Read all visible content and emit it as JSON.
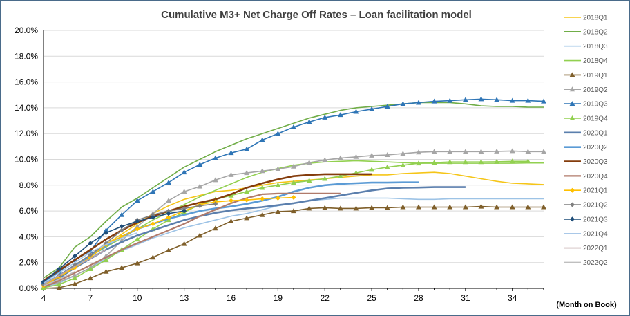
{
  "chart_data": {
    "type": "line",
    "title": "Cumulative M3+ Net Charge Off Rates – Loan facilitation model",
    "xlabel": "(Month on Book)",
    "ylabel": "",
    "xlim": [
      4,
      36
    ],
    "ylim": [
      0,
      20
    ],
    "x_ticks": [
      4,
      7,
      10,
      13,
      16,
      19,
      22,
      25,
      28,
      31,
      34
    ],
    "x_tick_labels": [
      "4",
      "7",
      "10",
      "13",
      "16",
      "19",
      "22",
      "25",
      "28",
      "31",
      "34"
    ],
    "y_ticks": [
      0,
      2,
      4,
      6,
      8,
      10,
      12,
      14,
      16,
      18,
      20
    ],
    "y_tick_labels": [
      "0.0%",
      "2.0%",
      "4.0%",
      "6.0%",
      "8.0%",
      "10.0%",
      "12.0%",
      "14.0%",
      "16.0%",
      "18.0%",
      "20.0%"
    ],
    "grid": true,
    "legend_position": "right",
    "series": [
      {
        "name": "2018Q1",
        "color": "#f5c518",
        "marker": "none",
        "x_start": 4,
        "values": [
          0.3,
          1.0,
          1.8,
          2.6,
          3.4,
          4.2,
          5.0,
          5.8,
          6.4,
          6.9,
          7.2,
          7.5,
          7.6,
          7.8,
          8.0,
          8.2,
          8.3,
          8.4,
          8.5,
          8.6,
          8.7,
          8.8,
          8.8,
          8.9,
          8.95,
          9.0,
          8.9,
          8.7,
          8.5,
          8.3,
          8.15,
          8.1,
          8.05
        ]
      },
      {
        "name": "2018Q2",
        "color": "#70ad47",
        "marker": "none",
        "x_start": 4,
        "values": [
          0.8,
          1.6,
          3.2,
          4.0,
          5.2,
          6.3,
          7.0,
          7.8,
          8.6,
          9.4,
          10.0,
          10.6,
          11.1,
          11.6,
          12.0,
          12.4,
          12.8,
          13.2,
          13.5,
          13.8,
          14.0,
          14.1,
          14.2,
          14.3,
          14.4,
          14.4,
          14.4,
          14.3,
          14.15,
          14.1,
          14.1,
          14.05,
          14.05
        ]
      },
      {
        "name": "2018Q3",
        "color": "#9dc3e6",
        "marker": "none",
        "x_start": 4,
        "values": [
          0.1,
          0.4,
          1.0,
          1.6,
          2.3,
          2.9,
          3.4,
          3.9,
          4.3,
          4.7,
          5.0,
          5.3,
          5.6,
          5.8,
          6.1,
          6.4,
          6.6,
          6.8,
          6.9,
          7.0,
          7.0,
          7.0,
          7.0,
          6.95,
          6.9,
          6.9,
          6.95,
          6.95,
          6.95,
          6.95,
          6.95,
          6.95,
          6.95
        ]
      },
      {
        "name": "2018Q4",
        "color": "#92d050",
        "marker": "none",
        "x_start": 4,
        "values": [
          0.3,
          0.9,
          1.8,
          2.5,
          3.2,
          3.9,
          4.6,
          5.3,
          5.9,
          6.5,
          7.1,
          7.6,
          8.1,
          8.6,
          9.0,
          9.3,
          9.55,
          9.7,
          9.8,
          9.85,
          9.9,
          9.85,
          9.8,
          9.75,
          9.7,
          9.7,
          9.7,
          9.7,
          9.7,
          9.7,
          9.7,
          9.72,
          9.72
        ]
      },
      {
        "name": "2019Q1",
        "color": "#7f5f2a",
        "marker": "triangle",
        "x_start": 4,
        "values": [
          0.0,
          0.05,
          0.35,
          0.8,
          1.3,
          1.6,
          1.95,
          2.4,
          2.95,
          3.45,
          4.1,
          4.65,
          5.2,
          5.45,
          5.7,
          5.95,
          6.0,
          6.2,
          6.25,
          6.2,
          6.2,
          6.25,
          6.25,
          6.3,
          6.3,
          6.3,
          6.3,
          6.3,
          6.35,
          6.3,
          6.3,
          6.3,
          6.3
        ]
      },
      {
        "name": "2019Q2",
        "color": "#a6a6a6",
        "marker": "triangle",
        "x_start": 4,
        "values": [
          0.1,
          0.5,
          1.0,
          1.6,
          2.5,
          3.7,
          4.8,
          5.8,
          6.8,
          7.5,
          7.9,
          8.4,
          8.8,
          8.95,
          9.1,
          9.25,
          9.45,
          9.75,
          9.95,
          10.1,
          10.2,
          10.3,
          10.35,
          10.45,
          10.55,
          10.6,
          10.6,
          10.6,
          10.6,
          10.62,
          10.65,
          10.6,
          10.6
        ]
      },
      {
        "name": "2019Q3",
        "color": "#2e75b6",
        "marker": "triangle",
        "x_start": 4,
        "values": [
          0.5,
          1.3,
          2.2,
          2.9,
          4.5,
          5.7,
          6.8,
          7.5,
          8.2,
          9.0,
          9.6,
          10.1,
          10.5,
          10.8,
          11.5,
          12.0,
          12.5,
          12.9,
          13.25,
          13.45,
          13.7,
          13.9,
          14.1,
          14.3,
          14.4,
          14.5,
          14.55,
          14.62,
          14.67,
          14.62,
          14.55,
          14.55,
          14.5
        ]
      },
      {
        "name": "2019Q4",
        "color": "#92d050",
        "marker": "triangle",
        "x_start": 4,
        "values": [
          0.05,
          0.3,
          0.8,
          1.5,
          2.2,
          3.0,
          3.8,
          4.6,
          5.3,
          5.9,
          6.5,
          6.9,
          7.2,
          7.5,
          7.8,
          8.0,
          8.2,
          8.35,
          8.5,
          8.7,
          8.95,
          9.2,
          9.4,
          9.55,
          9.7,
          9.75,
          9.8,
          9.8,
          9.8,
          9.82,
          9.85,
          9.85
        ]
      },
      {
        "name": "2020Q1",
        "color": "#5b7fad",
        "marker": "none",
        "x_start": 4,
        "values": [
          0.2,
          0.8,
          1.6,
          2.3,
          3.0,
          3.6,
          4.1,
          4.5,
          4.9,
          5.3,
          5.6,
          5.85,
          6.05,
          6.2,
          6.3,
          6.45,
          6.6,
          6.8,
          7.0,
          7.2,
          7.4,
          7.6,
          7.75,
          7.8,
          7.82,
          7.85,
          7.85,
          7.85
        ]
      },
      {
        "name": "2020Q2",
        "color": "#5b9bd5",
        "marker": "none",
        "x_start": 4,
        "values": [
          0.3,
          1.0,
          1.8,
          2.5,
          3.3,
          4.0,
          4.6,
          5.0,
          5.4,
          5.7,
          6.0,
          6.2,
          6.35,
          6.55,
          6.8,
          7.1,
          7.5,
          7.8,
          8.0,
          8.1,
          8.15,
          8.2,
          8.2,
          8.22,
          8.22
        ]
      },
      {
        "name": "2020Q3",
        "color": "#843c0c",
        "marker": "none",
        "x_start": 4,
        "values": [
          0.6,
          1.4,
          2.2,
          3.0,
          3.8,
          4.5,
          5.1,
          5.6,
          6.0,
          6.35,
          6.65,
          6.9,
          7.3,
          7.8,
          8.15,
          8.45,
          8.7,
          8.8,
          8.85,
          8.85,
          8.85,
          8.85
        ]
      },
      {
        "name": "2020Q4",
        "color": "#b07a6a",
        "marker": "none",
        "x_start": 4,
        "values": [
          0.1,
          0.6,
          1.2,
          1.8,
          2.4,
          3.0,
          3.5,
          4.0,
          4.5,
          5.0,
          5.6,
          6.1,
          6.6,
          7.0,
          7.3,
          7.35,
          7.35,
          7.35,
          7.35,
          7.35
        ]
      },
      {
        "name": "2021Q1",
        "color": "#ffc000",
        "marker": "diamond",
        "x_start": 4,
        "values": [
          0.2,
          0.9,
          1.6,
          2.4,
          3.4,
          4.0,
          4.6,
          5.0,
          5.5,
          6.0,
          6.5,
          6.7,
          6.8,
          6.85,
          6.95,
          7.0,
          7.05
        ]
      },
      {
        "name": "2021Q2",
        "color": "#7f7f7f",
        "marker": "diamond",
        "x_start": 4,
        "values": [
          0.3,
          1.0,
          1.8,
          2.6,
          3.5,
          4.5,
          5.3,
          5.7,
          6.0,
          6.2,
          6.4,
          6.55
        ]
      },
      {
        "name": "2021Q3",
        "color": "#1f4e79",
        "marker": "diamond",
        "x_start": 4,
        "values": [
          0.5,
          1.5,
          2.5,
          3.5,
          4.3,
          4.8,
          5.2,
          5.5,
          5.8,
          6.0
        ]
      },
      {
        "name": "2021Q4",
        "color": "#a9c8e8",
        "marker": "none",
        "x_start": 4,
        "values": [
          0.4,
          1.2,
          2.0,
          2.8,
          3.4,
          3.9,
          4.3
        ]
      },
      {
        "name": "2022Q1",
        "color": "#bfa6a6",
        "marker": "none",
        "x_start": 4,
        "values": [
          0.3,
          1.0,
          1.7,
          2.3,
          3.0
        ]
      },
      {
        "name": "2022Q2",
        "color": "#bfbfbf",
        "marker": "none",
        "x_start": 4,
        "values": [
          0.2,
          0.7,
          1.3
        ]
      }
    ]
  }
}
